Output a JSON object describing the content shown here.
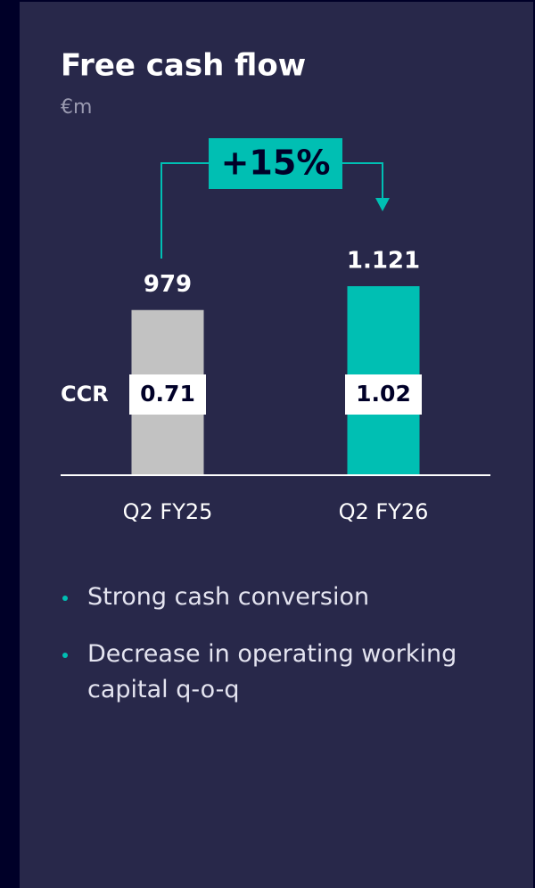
{
  "chart_data": {
    "type": "bar",
    "title": "Free cash flow",
    "subtitle": "€m",
    "categories": [
      "Q2 FY25",
      "Q2 FY26"
    ],
    "values": [
      979,
      1121
    ],
    "value_labels": [
      "979",
      "1.121"
    ],
    "colors": [
      "#c2c2c2",
      "#00bfb3"
    ],
    "ccr": {
      "label": "CCR",
      "values": [
        0.71,
        1.02
      ]
    },
    "annotation": "+15%"
  },
  "bullets": [
    "Strong cash conversion",
    "Decrease in operating working capital q-o-q"
  ]
}
